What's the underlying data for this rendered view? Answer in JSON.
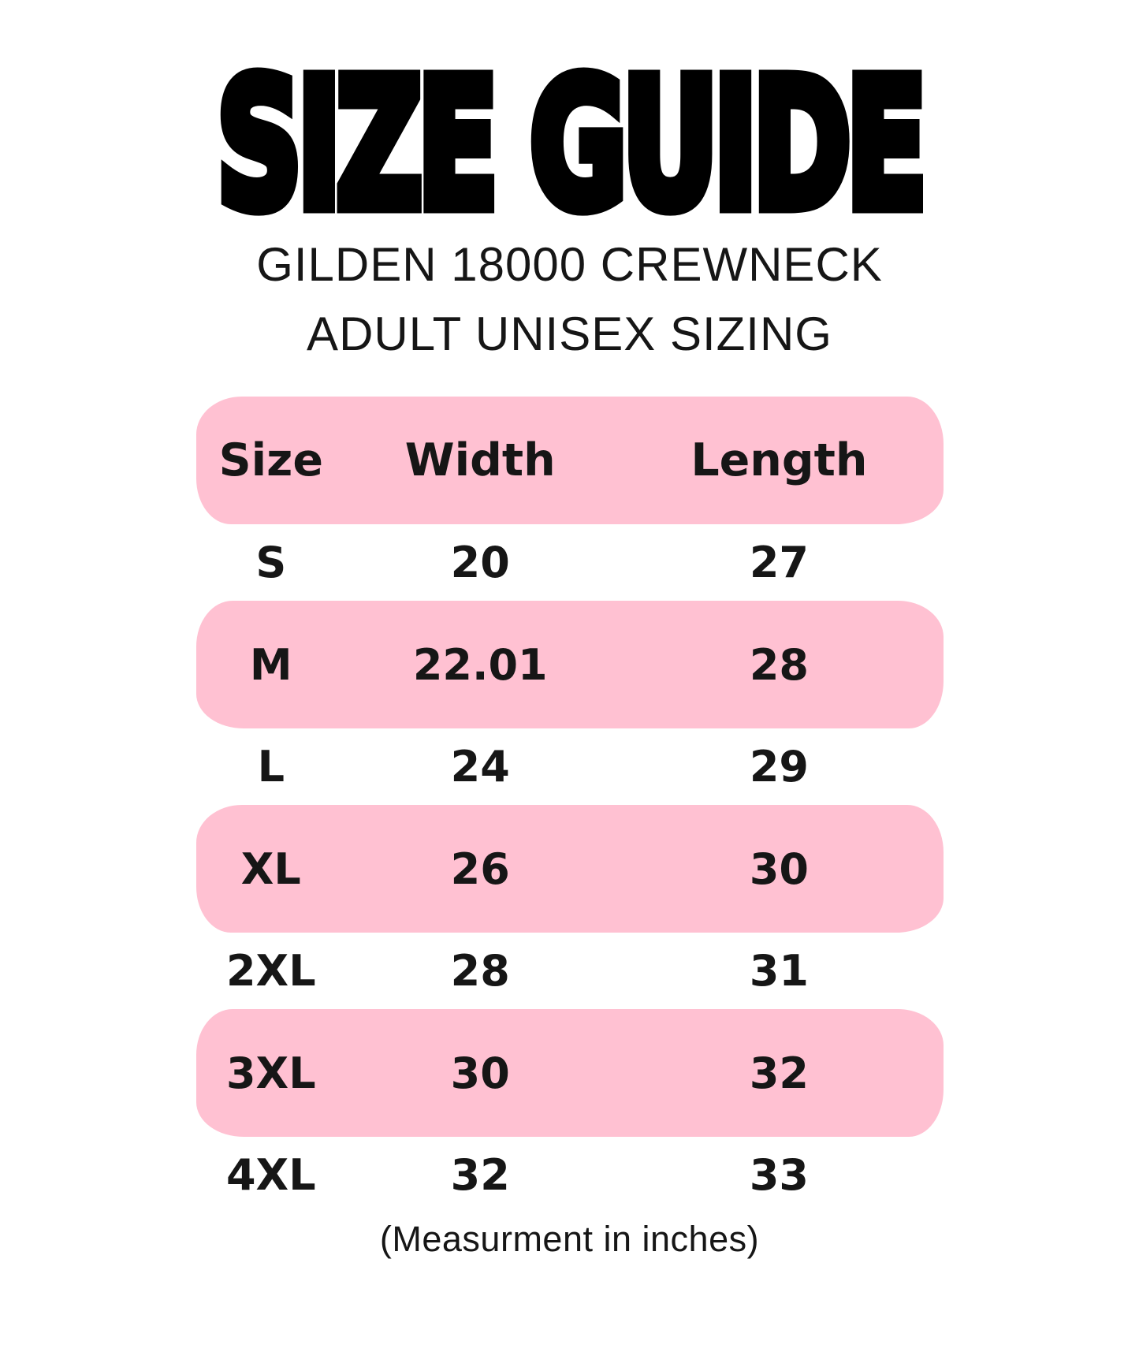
{
  "colors": {
    "highlight_pink": "#ffc1d2",
    "text_black": "#161616",
    "background": "#ffffff"
  },
  "chart_data": {
    "type": "table",
    "title": "SIZE GUIDE",
    "subtitle_line1": "GILDEN 18000 CREWNECK",
    "subtitle_line2": "ADULT UNISEX SIZING",
    "footnote": "(Measurment in inches)",
    "units": "inches",
    "columns": [
      "Size",
      "Width",
      "Length"
    ],
    "rows": [
      {
        "size": "S",
        "width": "20",
        "length": "27",
        "highlighted": false
      },
      {
        "size": "M",
        "width": "22.01",
        "length": "28",
        "highlighted": true
      },
      {
        "size": "L",
        "width": "24",
        "length": "29",
        "highlighted": false
      },
      {
        "size": "XL",
        "width": "26",
        "length": "30",
        "highlighted": true
      },
      {
        "size": "2XL",
        "width": "28",
        "length": "31",
        "highlighted": false
      },
      {
        "size": "3XL",
        "width": "30",
        "length": "32",
        "highlighted": true
      },
      {
        "size": "4XL",
        "width": "32",
        "length": "33",
        "highlighted": false
      }
    ],
    "layout": {
      "header_highlighted": true,
      "highlight_style": "alternating pink rounded hand-drawn bands, starting with header row",
      "legend": "none",
      "grid": "off"
    }
  }
}
